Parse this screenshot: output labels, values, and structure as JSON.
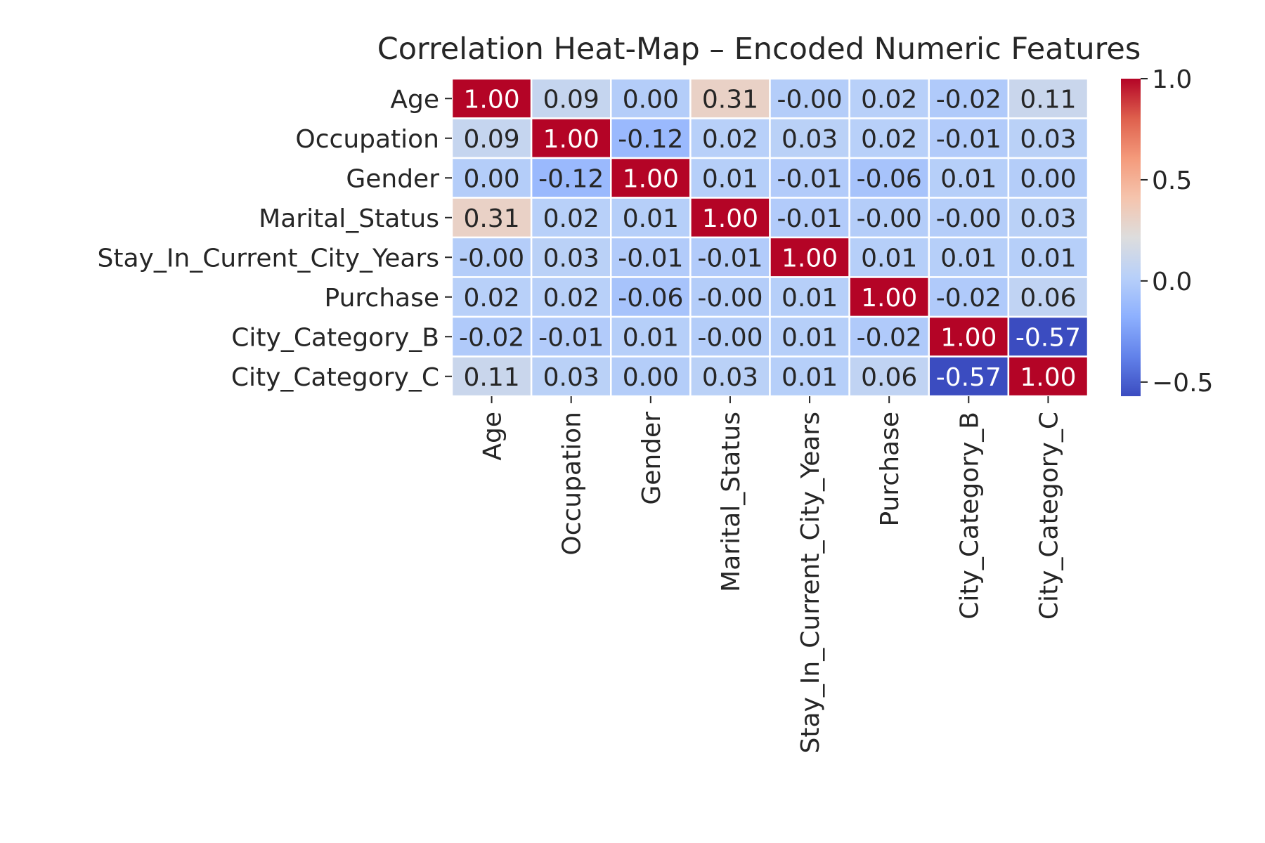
{
  "chart_data": {
    "type": "heatmap",
    "title": "Correlation Heat-Map – Encoded Numeric Features",
    "xlabel": "",
    "ylabel": "",
    "rows": [
      "Age",
      "Occupation",
      "Gender",
      "Marital_Status",
      "Stay_In_Current_City_Years",
      "Purchase",
      "City_Category_B",
      "City_Category_C"
    ],
    "columns": [
      "Age",
      "Occupation",
      "Gender",
      "Marital_Status",
      "Stay_In_Current_City_Years",
      "Purchase",
      "City_Category_B",
      "City_Category_C"
    ],
    "values": [
      [
        1.0,
        0.09,
        0.0,
        0.31,
        -0.0,
        0.02,
        -0.02,
        0.11
      ],
      [
        0.09,
        1.0,
        -0.12,
        0.02,
        0.03,
        0.02,
        -0.01,
        0.03
      ],
      [
        0.0,
        -0.12,
        1.0,
        0.01,
        -0.01,
        -0.06,
        0.01,
        0.0
      ],
      [
        0.31,
        0.02,
        0.01,
        1.0,
        -0.01,
        -0.0,
        -0.0,
        0.03
      ],
      [
        -0.0,
        0.03,
        -0.01,
        -0.01,
        1.0,
        0.01,
        0.01,
        0.01
      ],
      [
        0.02,
        0.02,
        -0.06,
        -0.0,
        0.01,
        1.0,
        -0.02,
        0.06
      ],
      [
        -0.02,
        -0.01,
        0.01,
        -0.0,
        0.01,
        -0.02,
        1.0,
        -0.57
      ],
      [
        0.11,
        0.03,
        0.0,
        0.03,
        0.01,
        0.06,
        -0.57,
        1.0
      ]
    ],
    "annotations": [
      [
        "1.00",
        "0.09",
        "0.00",
        "0.31",
        "-0.00",
        "0.02",
        "-0.02",
        "0.11"
      ],
      [
        "0.09",
        "1.00",
        "-0.12",
        "0.02",
        "0.03",
        "0.02",
        "-0.01",
        "0.03"
      ],
      [
        "0.00",
        "-0.12",
        "1.00",
        "0.01",
        "-0.01",
        "-0.06",
        "0.01",
        "0.00"
      ],
      [
        "0.31",
        "0.02",
        "0.01",
        "1.00",
        "-0.01",
        "-0.00",
        "-0.00",
        "0.03"
      ],
      [
        "-0.00",
        "0.03",
        "-0.01",
        "-0.01",
        "1.00",
        "0.01",
        "0.01",
        "0.01"
      ],
      [
        "0.02",
        "0.02",
        "-0.06",
        "-0.00",
        "0.01",
        "1.00",
        "-0.02",
        "0.06"
      ],
      [
        "-0.02",
        "-0.01",
        "0.01",
        "-0.00",
        "0.01",
        "-0.02",
        "1.00",
        "-0.57"
      ],
      [
        "0.11",
        "0.03",
        "0.00",
        "0.03",
        "0.01",
        "0.06",
        "-0.57",
        "1.00"
      ]
    ],
    "colormap": "coolwarm",
    "vmin": -0.57,
    "vmax": 1.0,
    "cell_border_color": "#ffffff",
    "colorbar": {
      "ticks": [
        1.0,
        0.5,
        0.0,
        -0.5
      ],
      "tick_labels": [
        "1.0",
        "0.5",
        "0.0",
        "−0.5"
      ],
      "placement": "right"
    },
    "grid": false
  }
}
